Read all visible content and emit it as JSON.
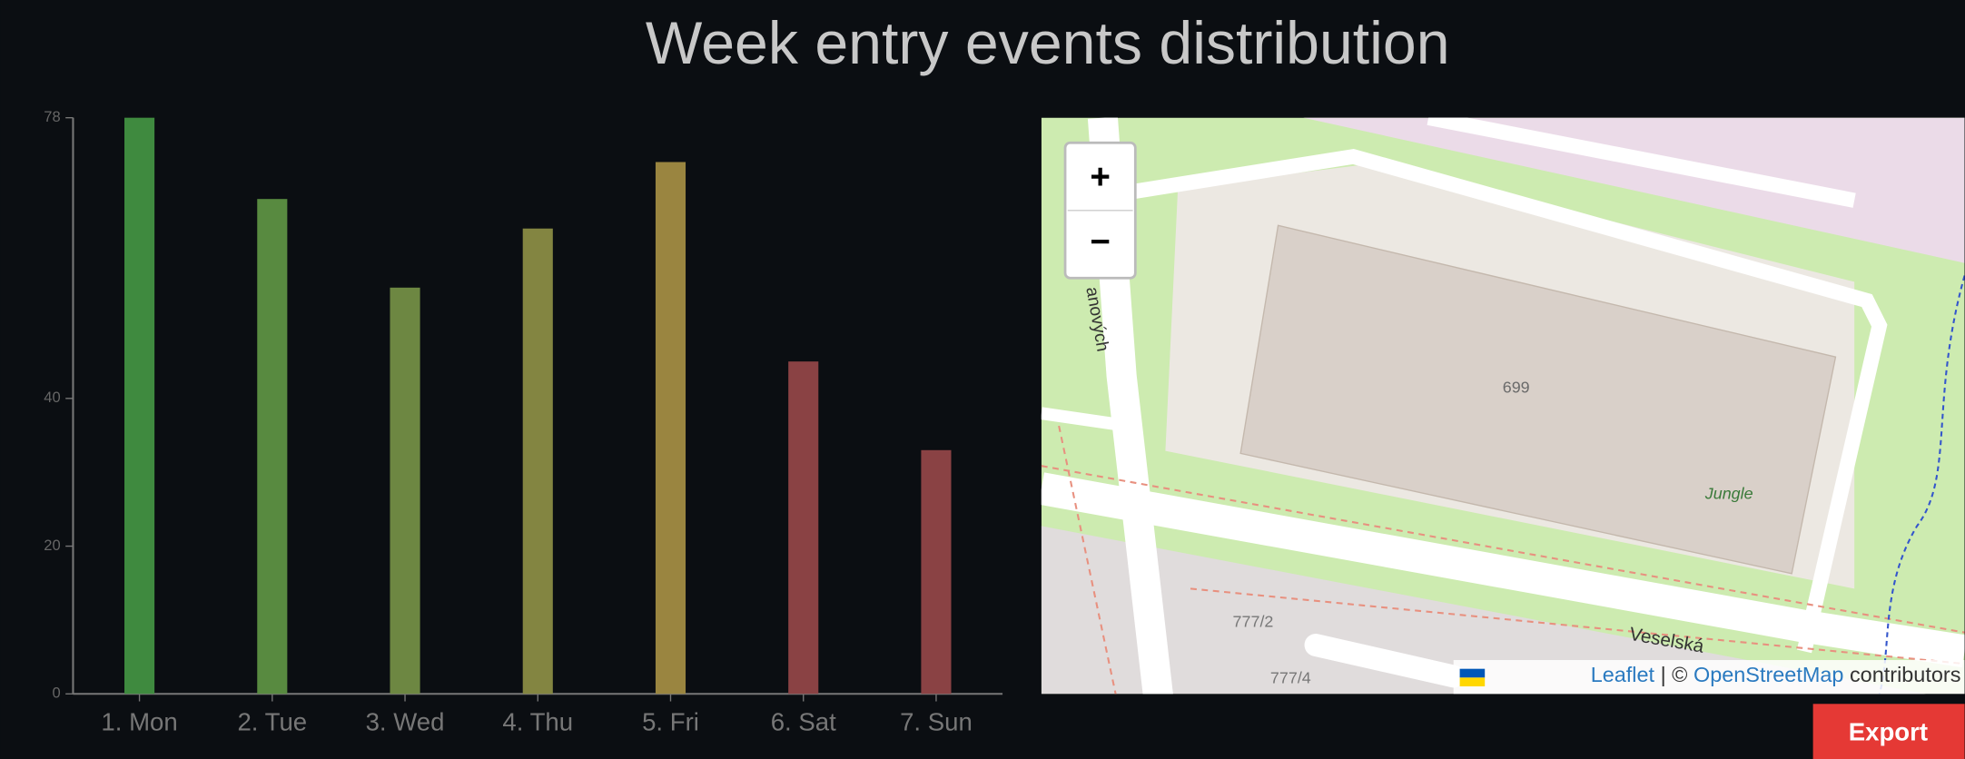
{
  "chart_data": {
    "type": "bar",
    "title": "Week entry events distribution",
    "categories": [
      "1. Mon",
      "2. Tue",
      "3. Wed",
      "4. Thu",
      "5. Fri",
      "6. Sat",
      "7. Sun"
    ],
    "values": [
      78,
      67,
      55,
      63,
      72,
      45,
      33
    ],
    "colors": [
      "#3f8a3f",
      "#588a40",
      "#6d8742",
      "#838541",
      "#9a8540",
      "#8a4244",
      "#8a4244"
    ],
    "ylim": [
      0,
      78
    ],
    "yticks": [
      0,
      20,
      40,
      78
    ],
    "grid": false
  },
  "map": {
    "zoom_in": "+",
    "zoom_out": "−",
    "labels": [
      "699",
      "Jungle",
      "Veselská",
      "777/2",
      "777/4",
      "anových"
    ],
    "attribution": {
      "leaflet": "Leaflet",
      "separator": "| ©",
      "osm": "OpenStreetMap",
      "rest": "contributors"
    }
  },
  "export": "Export"
}
